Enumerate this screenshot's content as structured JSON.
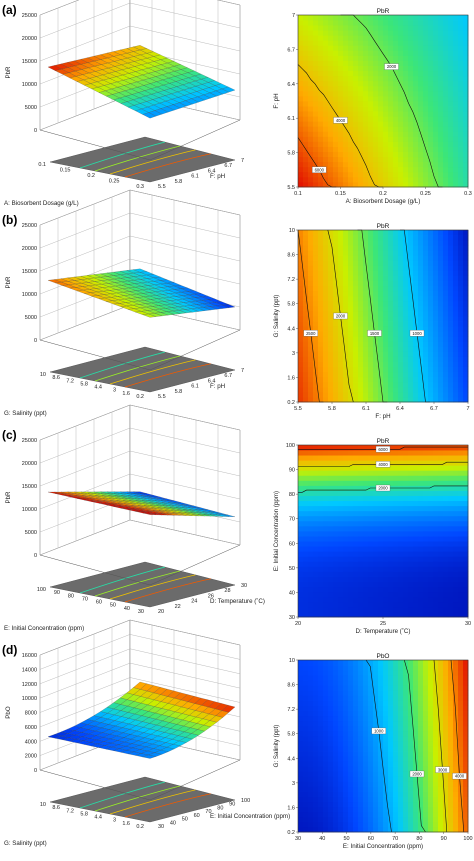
{
  "chart_data": [
    {
      "panel_label": "(a)",
      "type": "surface3d",
      "zlabel": "PbR",
      "z_ticks": [
        "25000",
        "20000",
        "15000",
        "10000",
        "5000",
        "0"
      ],
      "x_label": "A: Biosorbent Dosage (g/L)",
      "x_ticks": [
        "0.1",
        "0.15",
        "0.2",
        "0.25",
        "0.3"
      ],
      "y_label": "F: pH",
      "y_ticks": [
        "5.5",
        "5.8",
        "6.1",
        "6.4",
        "6.7",
        "7"
      ],
      "colorbar": {
        "min": "500",
        "max": "7600"
      },
      "surface_z_range": [
        500,
        7600
      ]
    },
    {
      "panel_label": "",
      "type": "contour",
      "title": "PbR",
      "x_label": "A: Biosorbent Dosage (g/L)",
      "x_ticks": [
        "0.1",
        "0.15",
        "0.2",
        "0.25",
        "0.3"
      ],
      "y_label": "F: pH",
      "y_ticks": [
        "5.5",
        "5.8",
        "6.1",
        "6.4",
        "6.7",
        "7"
      ],
      "contour_labels": [
        "4000",
        "2000",
        "6000"
      ]
    },
    {
      "panel_label": "(b)",
      "type": "surface3d",
      "zlabel": "PbR",
      "z_ticks": [
        "25000",
        "20000",
        "15000",
        "10000",
        "5000",
        "0"
      ],
      "x_label": "G: Salinity (ppt)",
      "x_ticks": [
        "10",
        "8.6",
        "7.2",
        "5.8",
        "4.4",
        "3",
        "1.6",
        "0.2"
      ],
      "y_label": "F: pH",
      "y_ticks": [
        "5.5",
        "5.8",
        "6.1",
        "6.4",
        "6.7",
        "7"
      ],
      "colorbar": {
        "min": "500",
        "max": "3000"
      },
      "surface_z_range": [
        500,
        3000
      ]
    },
    {
      "panel_label": "",
      "type": "contour",
      "title": "PbR",
      "x_label": "F: pH",
      "x_ticks": [
        "5.5",
        "5.8",
        "6.1",
        "6.4",
        "6.7",
        "7"
      ],
      "y_label": "G: Salinity (ppt)",
      "y_ticks": [
        "0.2",
        "1.6",
        "3",
        "4.4",
        "5.8",
        "7.2",
        "8.6",
        "10"
      ],
      "contour_labels": [
        "2500",
        "2000",
        "1500",
        "1000"
      ]
    },
    {
      "panel_label": "(c)",
      "type": "surface3d",
      "zlabel": "PbR",
      "z_ticks": [
        "25000",
        "20000",
        "15000",
        "10000",
        "5000",
        "0"
      ],
      "x_label": "E: Initial Concentration (ppm)",
      "x_ticks": [
        "100",
        "90",
        "80",
        "70",
        "60",
        "50",
        "40",
        "30"
      ],
      "y_label": "D: Temperature (˚C)",
      "y_ticks": [
        "20",
        "22",
        "24",
        "26",
        "28",
        "30"
      ],
      "colorbar": {
        "min": "420",
        "max": "8300"
      },
      "surface_z_range": [
        420,
        8300
      ]
    },
    {
      "panel_label": "",
      "type": "contour",
      "title": "PbR",
      "x_label": "D: Temperature (˚C)",
      "x_ticks": [
        "20",
        "25",
        "30"
      ],
      "y_label": "E: Initial Concentration (ppm)",
      "y_ticks": [
        "30",
        "40",
        "50",
        "60",
        "70",
        "80",
        "90",
        "100"
      ],
      "contour_labels": [
        "6000",
        "4000",
        "2000"
      ]
    },
    {
      "panel_label": "(d)",
      "type": "surface3d",
      "zlabel": "PbO",
      "z_ticks": [
        "16000",
        "14000",
        "12000",
        "10000",
        "8000",
        "6000",
        "4000",
        "2000",
        "0"
      ],
      "x_label": "G: Salinity (ppt)",
      "x_ticks": [
        "10",
        "8.6",
        "7.2",
        "5.8",
        "4.4",
        "3",
        "1.6",
        "0.2"
      ],
      "y_label": "E: Initial Concentration (ppm)",
      "y_ticks": [
        "30",
        "40",
        "50",
        "60",
        "70",
        "80",
        "90",
        "100"
      ],
      "colorbar": {
        "min": "300",
        "max": "5200"
      },
      "surface_z_range": [
        300,
        5200
      ]
    },
    {
      "panel_label": "",
      "type": "contour",
      "title": "PbO",
      "x_label": "E: Initial Concentration (ppm)",
      "x_ticks": [
        "30",
        "40",
        "50",
        "60",
        "70",
        "80",
        "90",
        "100"
      ],
      "y_label": "G: Salinity (ppt)",
      "y_ticks": [
        "0.2",
        "1.6",
        "3",
        "4.4",
        "5.8",
        "7.2",
        "8.6",
        "10"
      ],
      "contour_labels": [
        "1000",
        "2000",
        "3000",
        "4000"
      ]
    }
  ]
}
